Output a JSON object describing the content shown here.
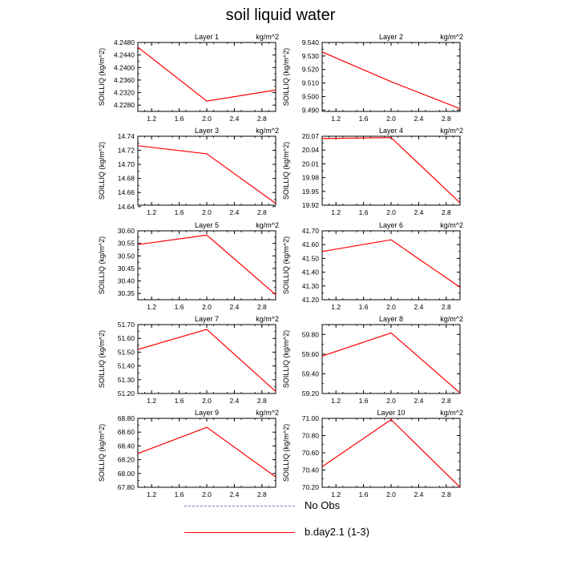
{
  "title": "soil liquid water",
  "legend": [
    {
      "label": "No Obs",
      "color": "#7b7bdb",
      "dashed": true
    },
    {
      "label": "b.day2.1 (1-3)",
      "color": "#ff0000",
      "dashed": false
    }
  ],
  "chart_data": [
    {
      "type": "line",
      "title": "Layer 1",
      "units": "kg/m^2",
      "ylabel": "SOILLIQ  (kg/m^2)",
      "x": [
        1,
        2,
        3
      ],
      "series": [
        {
          "name": "b.day2.1 (1-3)",
          "values": [
            4.2465,
            4.2293,
            4.2328
          ]
        }
      ],
      "xlim": [
        1,
        3
      ],
      "xticks": [
        "1.2",
        "1.6",
        "2.0",
        "2.4",
        "2.8"
      ],
      "ylim": [
        4.226,
        4.248
      ],
      "yticks": [
        "4.2280",
        "4.2320",
        "4.2360",
        "4.2400",
        "4.2440",
        "4.2480"
      ]
    },
    {
      "type": "line",
      "title": "Layer 2",
      "units": "kg/m^2",
      "ylabel": "SOILLIQ  (kg/m^2)",
      "x": [
        1,
        2,
        3
      ],
      "series": [
        {
          "name": "b.day2.1 (1-3)",
          "values": [
            9.533,
            9.511,
            9.491
          ]
        }
      ],
      "xlim": [
        1,
        3
      ],
      "xticks": [
        "1.2",
        "1.6",
        "2.0",
        "2.4",
        "2.8"
      ],
      "ylim": [
        9.489,
        9.54
      ],
      "yticks": [
        "9.490",
        "9.500",
        "9.510",
        "9.520",
        "9.530",
        "9.540"
      ]
    },
    {
      "type": "line",
      "title": "Layer 3",
      "units": "kg/m^2",
      "ylabel": "SOILLIQ  (kg/m^2)",
      "x": [
        1,
        2,
        3
      ],
      "series": [
        {
          "name": "b.day2.1 (1-3)",
          "values": [
            14.7265,
            14.715,
            14.6445
          ]
        }
      ],
      "xlim": [
        1,
        3
      ],
      "xticks": [
        "1.2",
        "1.6",
        "2.0",
        "2.4",
        "2.8"
      ],
      "ylim": [
        14.642,
        14.74
      ],
      "yticks": [
        "14.64",
        "14.66",
        "14.68",
        "14.70",
        "14.72",
        "14.74"
      ]
    },
    {
      "type": "line",
      "title": "Layer 4",
      "units": "kg/m^2",
      "ylabel": "SOILLIQ  (kg/m^2)",
      "x": [
        1,
        2,
        3
      ],
      "series": [
        {
          "name": "b.day2.1 (1-3)",
          "values": [
            20.065,
            20.067,
            19.925
          ]
        }
      ],
      "xlim": [
        1,
        3
      ],
      "xticks": [
        "1.2",
        "1.6",
        "2.0",
        "2.4",
        "2.8"
      ],
      "ylim": [
        19.92,
        20.07
      ],
      "yticks": [
        "19.92",
        "19.95",
        "19.98",
        "20.01",
        "20.04",
        "20.07"
      ]
    },
    {
      "type": "line",
      "title": "Layer 5",
      "units": "kg/m^2",
      "ylabel": "SOILLIQ  (kg/m^2)",
      "x": [
        1,
        2,
        3
      ],
      "series": [
        {
          "name": "b.day2.1 (1-3)",
          "values": [
            30.545,
            30.583,
            30.345
          ]
        }
      ],
      "xlim": [
        1,
        3
      ],
      "xticks": [
        "1.2",
        "1.6",
        "2.0",
        "2.4",
        "2.8"
      ],
      "ylim": [
        30.325,
        30.6
      ],
      "yticks": [
        "30.35",
        "30.40",
        "30.45",
        "30.50",
        "30.55",
        "30.60"
      ]
    },
    {
      "type": "line",
      "title": "Layer 6",
      "units": "kg/m^2",
      "ylabel": "SOILLIQ  (kg/m^2)",
      "x": [
        1,
        2,
        3
      ],
      "series": [
        {
          "name": "b.day2.1 (1-3)",
          "values": [
            41.55,
            41.635,
            41.29
          ]
        }
      ],
      "xlim": [
        1,
        3
      ],
      "xticks": [
        "1.2",
        "1.6",
        "2.0",
        "2.4",
        "2.8"
      ],
      "ylim": [
        41.2,
        41.7
      ],
      "yticks": [
        "41.20",
        "41.30",
        "41.40",
        "41.50",
        "41.60",
        "41.70"
      ]
    },
    {
      "type": "line",
      "title": "Layer 7",
      "units": "kg/m^2",
      "ylabel": "SOILLIQ  (kg/m^2)",
      "x": [
        1,
        2,
        3
      ],
      "series": [
        {
          "name": "b.day2.1 (1-3)",
          "values": [
            51.52,
            51.665,
            51.215
          ]
        }
      ],
      "xlim": [
        1,
        3
      ],
      "xticks": [
        "1.2",
        "1.6",
        "2.0",
        "2.4",
        "2.8"
      ],
      "ylim": [
        51.2,
        51.7
      ],
      "yticks": [
        "51.20",
        "51.30",
        "51.40",
        "51.50",
        "51.60",
        "51.70"
      ]
    },
    {
      "type": "line",
      "title": "Layer 8",
      "units": "kg/m^2",
      "ylabel": "SOILLIQ  (kg/m^2)",
      "x": [
        1,
        2,
        3
      ],
      "series": [
        {
          "name": "b.day2.1 (1-3)",
          "values": [
            59.58,
            59.815,
            59.205
          ]
        }
      ],
      "xlim": [
        1,
        3
      ],
      "xticks": [
        "1.2",
        "1.6",
        "2.0",
        "2.4",
        "2.8"
      ],
      "ylim": [
        59.2,
        59.9
      ],
      "yticks": [
        "59.20",
        "59.40",
        "59.60",
        "59.80"
      ]
    },
    {
      "type": "line",
      "title": "Layer 9",
      "units": "kg/m^2",
      "ylabel": "SOILLIQ  (kg/m^2)",
      "x": [
        1,
        2,
        3
      ],
      "series": [
        {
          "name": "b.day2.1 (1-3)",
          "values": [
            68.29,
            68.67,
            67.95
          ]
        }
      ],
      "xlim": [
        1,
        3
      ],
      "xticks": [
        "1.2",
        "1.6",
        "2.0",
        "2.4",
        "2.8"
      ],
      "ylim": [
        67.8,
        68.8
      ],
      "yticks": [
        "67.80",
        "68.00",
        "68.20",
        "68.40",
        "68.60",
        "68.80"
      ]
    },
    {
      "type": "line",
      "title": "Layer 10",
      "units": "kg/m^2",
      "ylabel": "SOILLIQ  (kg/m^2)",
      "x": [
        1,
        2,
        3
      ],
      "series": [
        {
          "name": "b.day2.1 (1-3)",
          "values": [
            70.44,
            70.985,
            70.2
          ]
        }
      ],
      "xlim": [
        1,
        3
      ],
      "xticks": [
        "1.2",
        "1.6",
        "2.0",
        "2.4",
        "2.8"
      ],
      "ylim": [
        70.2,
        71.0
      ],
      "yticks": [
        "70.20",
        "70.40",
        "70.60",
        "70.80",
        "71.00"
      ]
    }
  ]
}
